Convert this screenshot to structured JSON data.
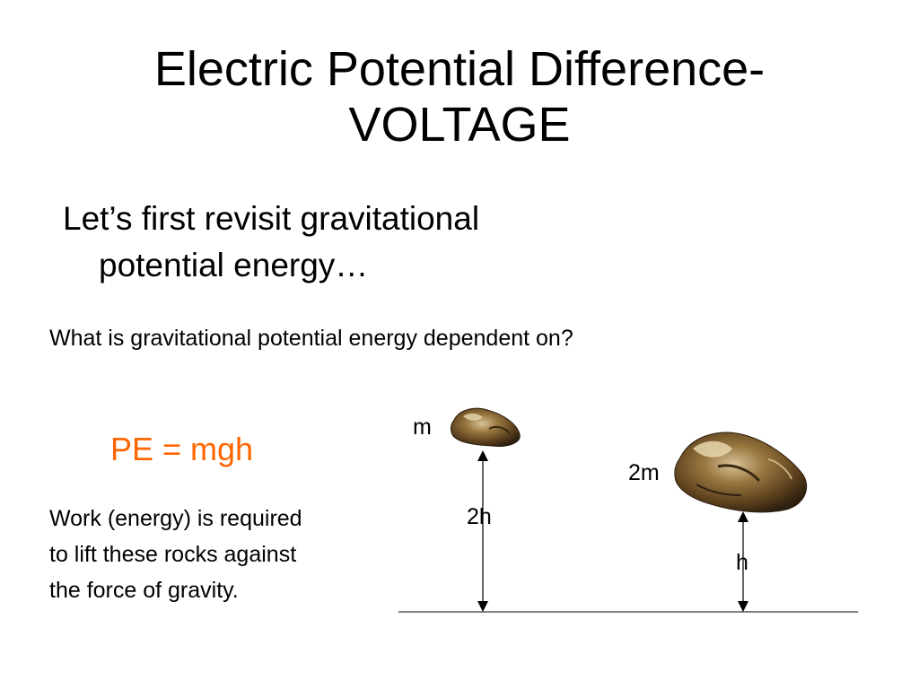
{
  "title": {
    "line1": "Electric Potential Difference-",
    "line2": "VOLTAGE"
  },
  "bullet": {
    "line1": "Let’s first revisit gravitational",
    "line2": "potential energy…"
  },
  "question": "What is gravitational potential energy dependent on?",
  "formula": "PE = mgh",
  "work_text": {
    "line1": "Work (energy) is required",
    "line2": "to lift these rocks against",
    "line3": "the force of gravity."
  },
  "diagram": {
    "small_rock_label": "m",
    "large_rock_label": "2m",
    "small_height_label": "2h",
    "large_height_label": "h"
  },
  "colors": {
    "formula": "#ff6600",
    "rock_dark": "#3b2a14",
    "rock_mid": "#7a5a2a",
    "rock_light": "#d8c49a"
  }
}
